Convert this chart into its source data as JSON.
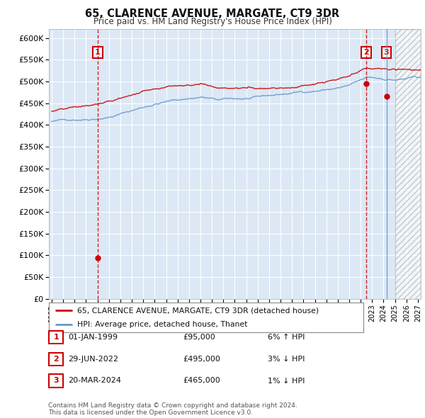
{
  "title": "65, CLARENCE AVENUE, MARGATE, CT9 3DR",
  "subtitle": "Price paid vs. HM Land Registry's House Price Index (HPI)",
  "background_color": "#ffffff",
  "plot_bg_color": "#dce8f5",
  "grid_color": "#ffffff",
  "hpi_color": "#6699cc",
  "sale_color": "#cc0000",
  "ylim": [
    0,
    620000
  ],
  "yticks": [
    0,
    50000,
    100000,
    150000,
    200000,
    250000,
    300000,
    350000,
    400000,
    450000,
    500000,
    550000,
    600000
  ],
  "xlim_start": 1994.75,
  "xlim_end": 2027.25,
  "hatch_start": 2025.0,
  "sale_points": [
    {
      "date": 1999.0,
      "price": 95000,
      "label": "1",
      "line_color": "#cc0000",
      "line_style": "--"
    },
    {
      "date": 2022.5,
      "price": 495000,
      "label": "2",
      "line_color": "#cc0000",
      "line_style": "--"
    },
    {
      "date": 2024.25,
      "price": 465000,
      "label": "3",
      "line_color": "#6699cc",
      "line_style": "-"
    }
  ],
  "legend_entries": [
    {
      "label": "65, CLARENCE AVENUE, MARGATE, CT9 3DR (detached house)",
      "color": "#cc0000"
    },
    {
      "label": "HPI: Average price, detached house, Thanet",
      "color": "#6699cc"
    }
  ],
  "table_rows": [
    {
      "num": "1",
      "date": "01-JAN-1999",
      "price": "£95,000",
      "hpi": "6% ↑ HPI"
    },
    {
      "num": "2",
      "date": "29-JUN-2022",
      "price": "£495,000",
      "hpi": "3% ↓ HPI"
    },
    {
      "num": "3",
      "date": "20-MAR-2024",
      "price": "£465,000",
      "hpi": "1% ↓ HPI"
    }
  ],
  "footer": "Contains HM Land Registry data © Crown copyright and database right 2024.\nThis data is licensed under the Open Government Licence v3.0."
}
